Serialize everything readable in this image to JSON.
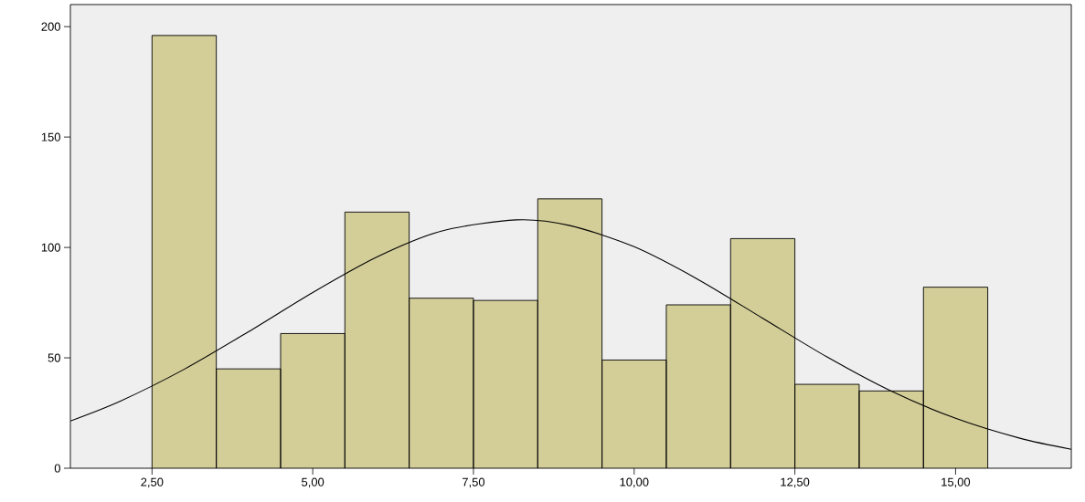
{
  "chart_data": {
    "type": "histogram",
    "bins": [
      2.5,
      3.5,
      4.5,
      5.5,
      6.5,
      7.5,
      8.5,
      9.5,
      10.5,
      11.5,
      12.5,
      13.5,
      14.5,
      15.5
    ],
    "values": [
      196,
      45,
      61,
      116,
      77,
      76,
      122,
      49,
      74,
      104,
      38,
      35,
      82
    ],
    "color": "#d3cd98",
    "series": [
      {
        "type": "line",
        "color": "#000000",
        "x": [
          1.23,
          2,
          3,
          4,
          5,
          6,
          7,
          8.17,
          9,
          10,
          11,
          12,
          13,
          14,
          15,
          16,
          16.8
        ],
        "values": [
          21.4,
          30.3,
          44.8,
          61.8,
          79.6,
          95.7,
          107.4,
          112.5,
          109.9,
          100.3,
          85.4,
          67.9,
          50.4,
          34.9,
          22.6,
          13.6,
          8.6
        ]
      }
    ],
    "xlim": [
      1.23,
      16.8
    ],
    "ylim": [
      0,
      210
    ],
    "xticks": [
      {
        "value": 2.5,
        "label": "2,50"
      },
      {
        "value": 5,
        "label": "5,00"
      },
      {
        "value": 7.5,
        "label": "7,50"
      },
      {
        "value": 10,
        "label": "10,00"
      },
      {
        "value": 12.5,
        "label": "12,50"
      },
      {
        "value": 15,
        "label": "15,00"
      }
    ],
    "yticks": [
      0,
      50,
      100,
      150,
      200
    ]
  }
}
